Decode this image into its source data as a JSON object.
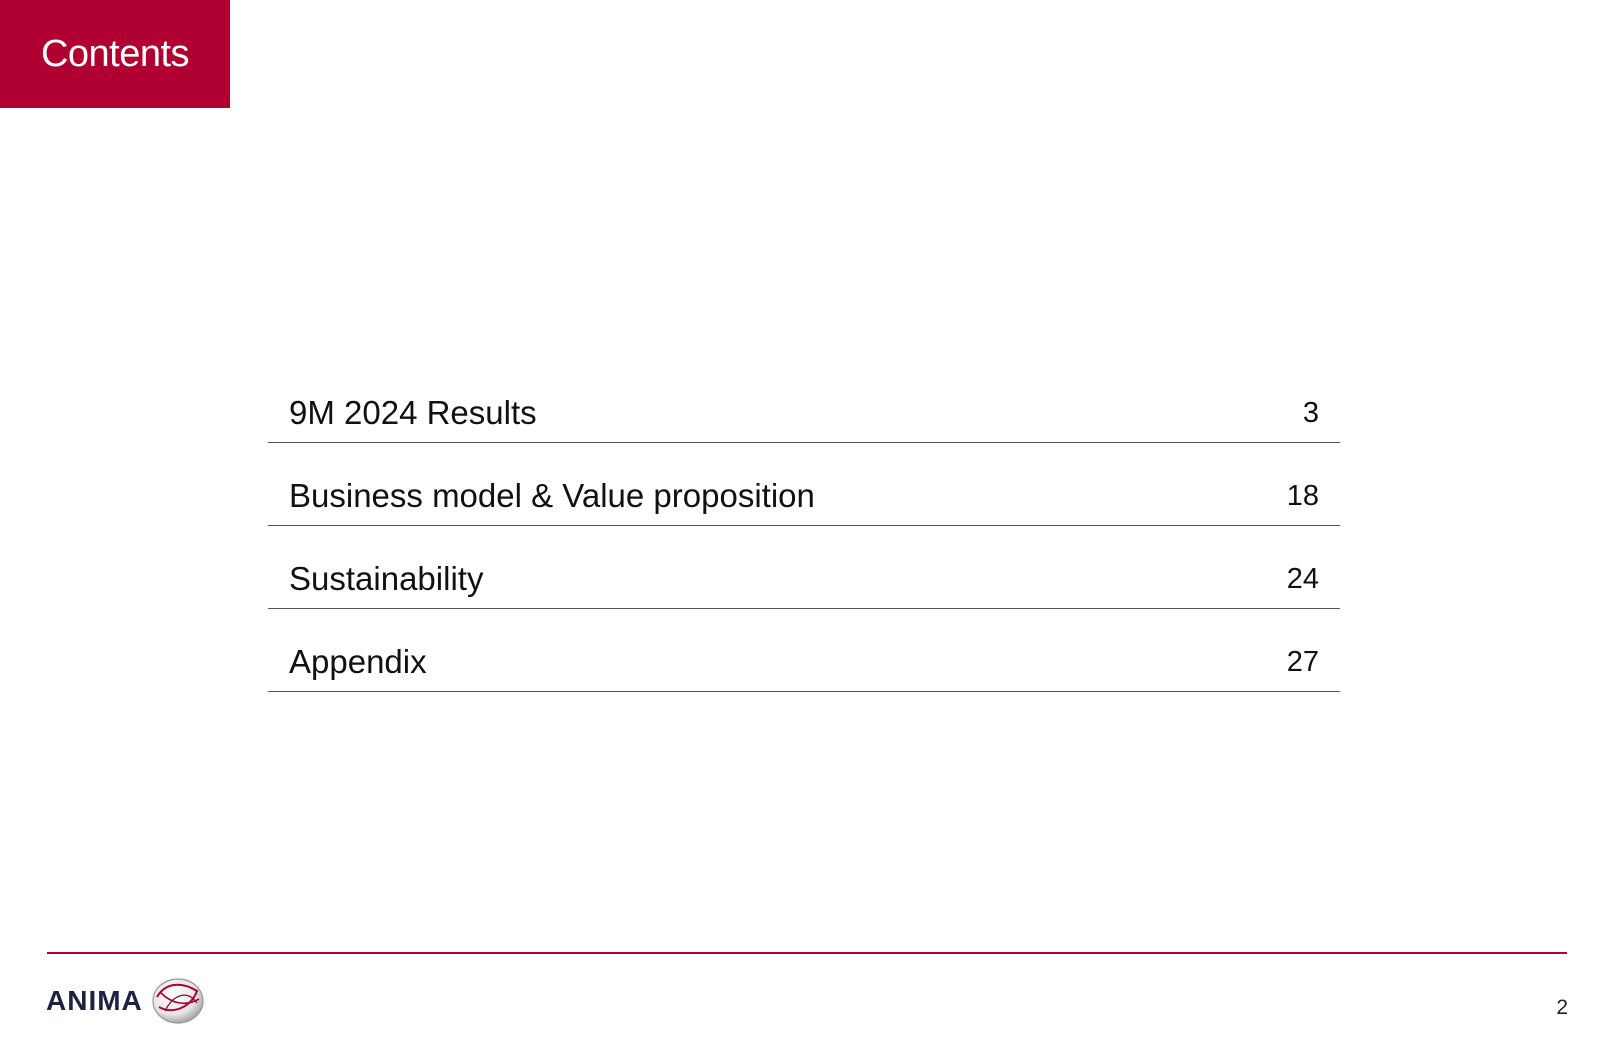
{
  "header": {
    "title": "Contents",
    "accent_color": "#b00032"
  },
  "toc": {
    "items": [
      {
        "label": "9M 2024 Results",
        "page": "3"
      },
      {
        "label": "Business model & Value proposition",
        "page": "18"
      },
      {
        "label": "Sustainability",
        "page": "24"
      },
      {
        "label": "Appendix",
        "page": "27"
      }
    ]
  },
  "footer": {
    "logo_text": "ANIMA",
    "logo_icon": "anima-logo-icon",
    "page_number": "2"
  }
}
